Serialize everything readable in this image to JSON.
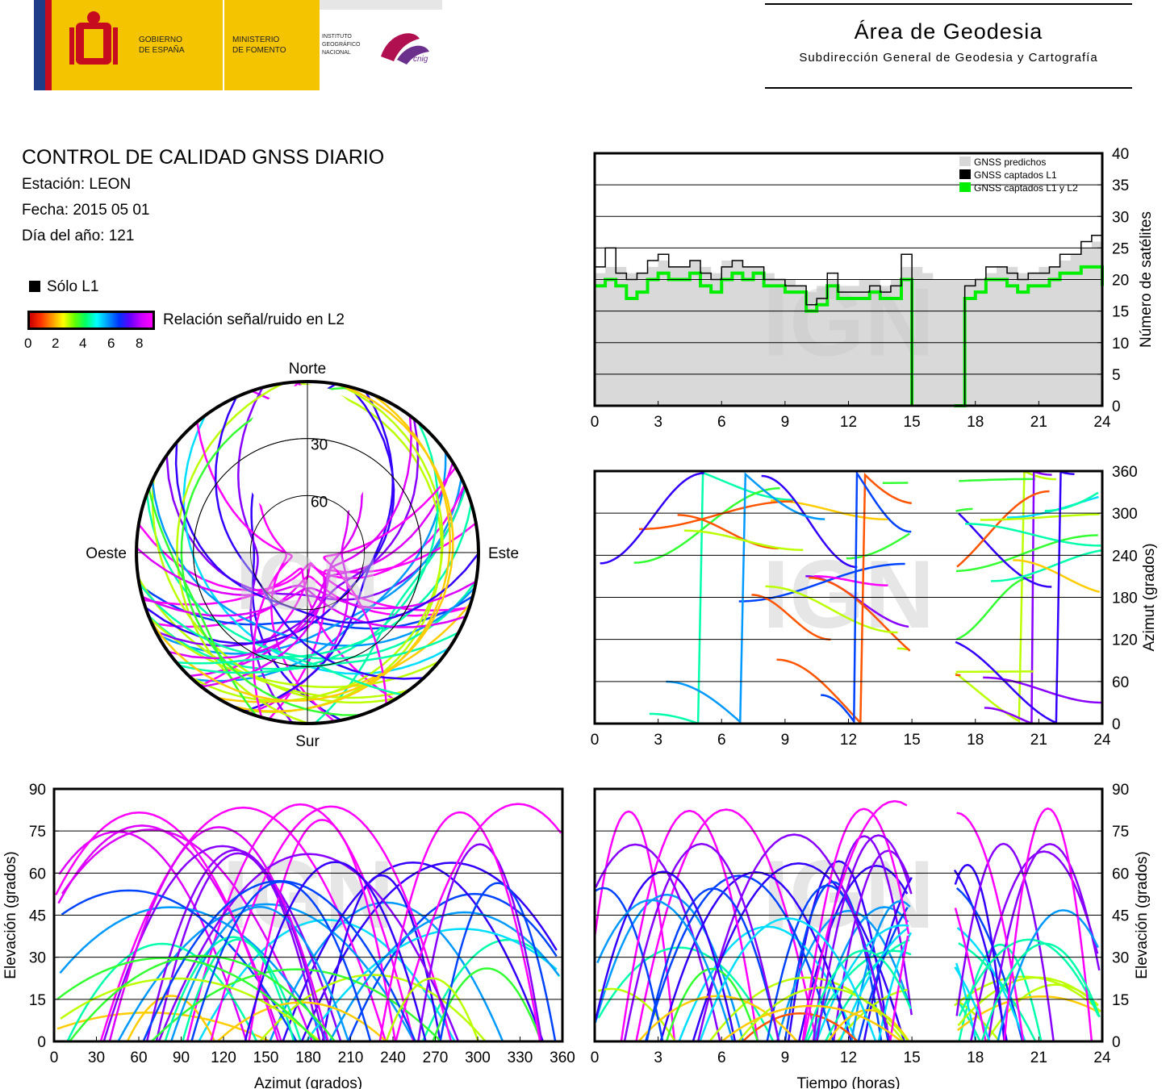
{
  "header": {
    "logos": {
      "gobierno": "GOBIERNO DE ESPAÑA",
      "ministerio": "MINISTERIO DE FOMENTO",
      "instituto": "INSTITUTO GEOGRÁFICO NACIONAL",
      "cnig": "cnig"
    },
    "area_title": "Área de Geodesia",
    "area_subtitle": "Subdirección General de Geodesia y Cartografía"
  },
  "report": {
    "title": "CONTROL DE CALIDAD GNSS DIARIO",
    "station": "Estación: LEON",
    "date": "Fecha: 2015 05 01",
    "doy": "Día del año: 121"
  },
  "legend": {
    "solo_l1": "Sólo L1",
    "snr_label": "Relación señal/ruido en L2",
    "snr_ticks": [
      "0",
      "2",
      "4",
      "6",
      "8"
    ]
  },
  "watermark": "IGN",
  "colors": {
    "predicted": "#d9d9d9",
    "captured_l1": "#000000",
    "captured_l1_l2": "#00ee00",
    "track_high": "#ff00ff",
    "track_mid": "#0000ff",
    "track_low": "#00ffcc"
  },
  "chart_data": [
    {
      "id": "sat-count",
      "type": "area",
      "x": [
        0,
        0.5,
        1,
        1.5,
        2,
        2.5,
        3,
        3.5,
        4,
        4.5,
        5,
        5.5,
        6,
        6.5,
        7,
        7.5,
        8,
        8.5,
        9,
        9.5,
        10,
        10.5,
        11,
        11.5,
        12,
        12.5,
        13,
        13.5,
        14,
        14.5,
        15,
        15.5,
        16,
        16.5,
        17,
        17.5,
        18,
        18.5,
        19,
        19.5,
        20,
        20.5,
        21,
        21.5,
        22,
        22.5,
        23,
        23.5,
        24
      ],
      "series": [
        {
          "name": "GNSS predichos",
          "values": [
            21,
            22,
            22,
            21,
            21,
            22,
            23,
            22,
            22,
            23,
            22,
            21,
            23,
            23,
            22,
            22,
            21,
            20,
            20,
            19,
            18,
            19,
            20,
            19,
            19,
            20,
            20,
            19,
            20,
            22,
            22,
            21,
            20,
            20,
            20,
            20,
            20,
            21,
            22,
            22,
            21,
            21,
            22,
            22,
            23,
            24,
            25,
            26,
            25
          ]
        },
        {
          "name": "GNSS captados L1",
          "values": [
            22,
            25,
            21,
            20,
            21,
            23,
            24,
            22,
            22,
            23,
            21,
            20,
            22,
            23,
            22,
            22,
            20,
            20,
            19,
            19,
            16,
            17,
            21,
            18,
            18,
            18,
            19,
            18,
            19,
            24,
            0,
            null,
            null,
            null,
            0,
            19,
            20,
            22,
            22,
            21,
            20,
            21,
            21,
            22,
            24,
            24,
            26,
            27,
            22
          ]
        },
        {
          "name": "GNSS captados L1 y L2",
          "values": [
            19,
            20,
            19,
            17,
            18,
            20,
            21,
            20,
            20,
            21,
            19,
            18,
            20,
            21,
            20,
            21,
            19,
            19,
            18,
            18,
            15,
            16,
            19,
            17,
            17,
            17,
            18,
            17,
            17,
            20,
            0,
            null,
            null,
            null,
            0,
            17,
            18,
            20,
            20,
            19,
            18,
            19,
            19,
            20,
            21,
            21,
            22,
            22,
            19
          ]
        }
      ],
      "xlim": [
        0,
        24
      ],
      "ylim": [
        0,
        40
      ],
      "xticks": [
        "0",
        "3",
        "6",
        "9",
        "12",
        "15",
        "18",
        "21",
        "24"
      ],
      "yticks": [
        "0",
        "5",
        "10",
        "15",
        "20",
        "25",
        "30",
        "35",
        "40"
      ],
      "ylabel": "Número de satélites",
      "legend_position": "top-right"
    },
    {
      "id": "azimuth-time",
      "type": "scatter",
      "xlim": [
        0,
        24
      ],
      "ylim": [
        0,
        360
      ],
      "xticks": [
        "0",
        "3",
        "6",
        "9",
        "12",
        "15",
        "18",
        "21",
        "24"
      ],
      "yticks": [
        "0",
        "60",
        "120",
        "180",
        "240",
        "300",
        "360"
      ],
      "ylabel": "Azimut (grados)",
      "gap": [
        15,
        17
      ]
    },
    {
      "id": "elev-azimuth",
      "type": "scatter",
      "xlim": [
        0,
        360
      ],
      "ylim": [
        0,
        90
      ],
      "xticks": [
        "0",
        "30",
        "60",
        "90",
        "120",
        "150",
        "180",
        "210",
        "240",
        "270",
        "300",
        "330",
        "360"
      ],
      "yticks": [
        "0",
        "15",
        "30",
        "45",
        "60",
        "75",
        "90"
      ],
      "xlabel": "Azimut (grados)",
      "ylabel": "Elevación (grados)"
    },
    {
      "id": "elev-time",
      "type": "line",
      "xlim": [
        0,
        24
      ],
      "ylim": [
        0,
        90
      ],
      "xticks": [
        "0",
        "3",
        "6",
        "9",
        "12",
        "15",
        "18",
        "21",
        "24"
      ],
      "yticks": [
        "0",
        "15",
        "30",
        "45",
        "60",
        "75",
        "90"
      ],
      "xlabel": "Tiempo (horas)",
      "ylabel": "Elevación (grados)",
      "gap": [
        15,
        17
      ]
    },
    {
      "id": "skyplot",
      "type": "scatter",
      "directions": {
        "north": "Norte",
        "south": "Sur",
        "west": "Oeste",
        "east": "Este"
      },
      "ring_labels": [
        "30",
        "60"
      ]
    }
  ]
}
